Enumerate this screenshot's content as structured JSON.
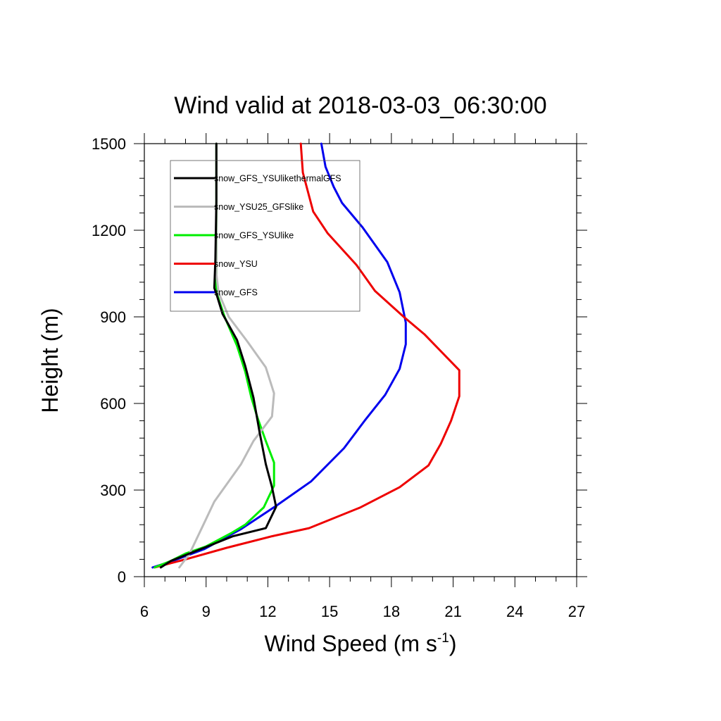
{
  "chart_data": {
    "type": "line",
    "title": "Wind valid at 2018-03-03_06:30:00",
    "xlabel": "Wind Speed (m s",
    "xlabel_sup": "-1",
    "xlabel_close": ")",
    "ylabel": "Height (m)",
    "xlim": [
      6,
      27
    ],
    "ylim": [
      0,
      1500
    ],
    "xticks": [
      6,
      9,
      12,
      15,
      18,
      21,
      24,
      27
    ],
    "yticks": [
      0,
      300,
      600,
      900,
      1200,
      1500
    ],
    "grid": false,
    "legend_position": "top-left",
    "series": [
      {
        "name": "snow_GFS_YSUlikethermalGFS",
        "color": "#000000",
        "points": [
          [
            6.8,
            32
          ],
          [
            7.3,
            55
          ],
          [
            8.9,
            100
          ],
          [
            10.3,
            140
          ],
          [
            11.9,
            168
          ],
          [
            12.4,
            242
          ],
          [
            12.2,
            310
          ],
          [
            11.9,
            390
          ],
          [
            11.6,
            500
          ],
          [
            11.3,
            620
          ],
          [
            10.9,
            730
          ],
          [
            10.5,
            820
          ],
          [
            9.8,
            910
          ],
          [
            9.5,
            980
          ],
          [
            9.4,
            1000
          ],
          [
            9.45,
            1100
          ],
          [
            9.5,
            1300
          ],
          [
            9.5,
            1500
          ]
        ]
      },
      {
        "name": "snow_YSU25_GFSlike",
        "color": "#bbbbbb",
        "points": [
          [
            7.7,
            32
          ],
          [
            8.2,
            80
          ],
          [
            8.8,
            170
          ],
          [
            9.4,
            260
          ],
          [
            10.2,
            340
          ],
          [
            10.7,
            390
          ],
          [
            11.3,
            470
          ],
          [
            12.2,
            555
          ],
          [
            12.3,
            635
          ],
          [
            11.9,
            725
          ],
          [
            11.0,
            815
          ],
          [
            10.1,
            900
          ],
          [
            9.6,
            985
          ],
          [
            9.5,
            1050
          ],
          [
            9.5,
            1300
          ],
          [
            9.5,
            1500
          ]
        ]
      },
      {
        "name": "snow_GFS_YSUlike",
        "color": "#00ee00",
        "points": [
          [
            6.5,
            32
          ],
          [
            7.3,
            55
          ],
          [
            8.0,
            80
          ],
          [
            9.0,
            105
          ],
          [
            10.2,
            150
          ],
          [
            10.9,
            180
          ],
          [
            11.8,
            240
          ],
          [
            12.3,
            315
          ],
          [
            12.3,
            395
          ],
          [
            11.9,
            470
          ],
          [
            11.5,
            550
          ],
          [
            11.2,
            620
          ],
          [
            10.9,
            710
          ],
          [
            10.5,
            800
          ],
          [
            9.9,
            900
          ],
          [
            9.5,
            985
          ],
          [
            9.5,
            1500
          ]
        ]
      },
      {
        "name": "snow_YSU",
        "color": "#ee0000",
        "points": [
          [
            6.5,
            32
          ],
          [
            8.0,
            60
          ],
          [
            10.0,
            100
          ],
          [
            12.2,
            140
          ],
          [
            14.0,
            168
          ],
          [
            16.5,
            240
          ],
          [
            18.4,
            310
          ],
          [
            19.8,
            385
          ],
          [
            20.4,
            460
          ],
          [
            20.9,
            540
          ],
          [
            21.3,
            625
          ],
          [
            21.3,
            715
          ],
          [
            19.6,
            840
          ],
          [
            18.6,
            900
          ],
          [
            17.2,
            990
          ],
          [
            16.3,
            1080
          ],
          [
            14.9,
            1190
          ],
          [
            14.2,
            1265
          ],
          [
            13.7,
            1400
          ],
          [
            13.6,
            1500
          ]
        ]
      },
      {
        "name": "snow_GFS",
        "color": "#0000ee",
        "points": [
          [
            6.4,
            32
          ],
          [
            7.4,
            55
          ],
          [
            8.9,
            95
          ],
          [
            10.7,
            165
          ],
          [
            12.4,
            245
          ],
          [
            14.1,
            330
          ],
          [
            15.7,
            445
          ],
          [
            16.7,
            540
          ],
          [
            17.7,
            630
          ],
          [
            18.4,
            720
          ],
          [
            18.7,
            805
          ],
          [
            18.7,
            880
          ],
          [
            18.4,
            985
          ],
          [
            17.8,
            1090
          ],
          [
            16.6,
            1210
          ],
          [
            15.6,
            1295
          ],
          [
            15.2,
            1350
          ],
          [
            14.8,
            1420
          ],
          [
            14.6,
            1500
          ]
        ]
      }
    ]
  }
}
